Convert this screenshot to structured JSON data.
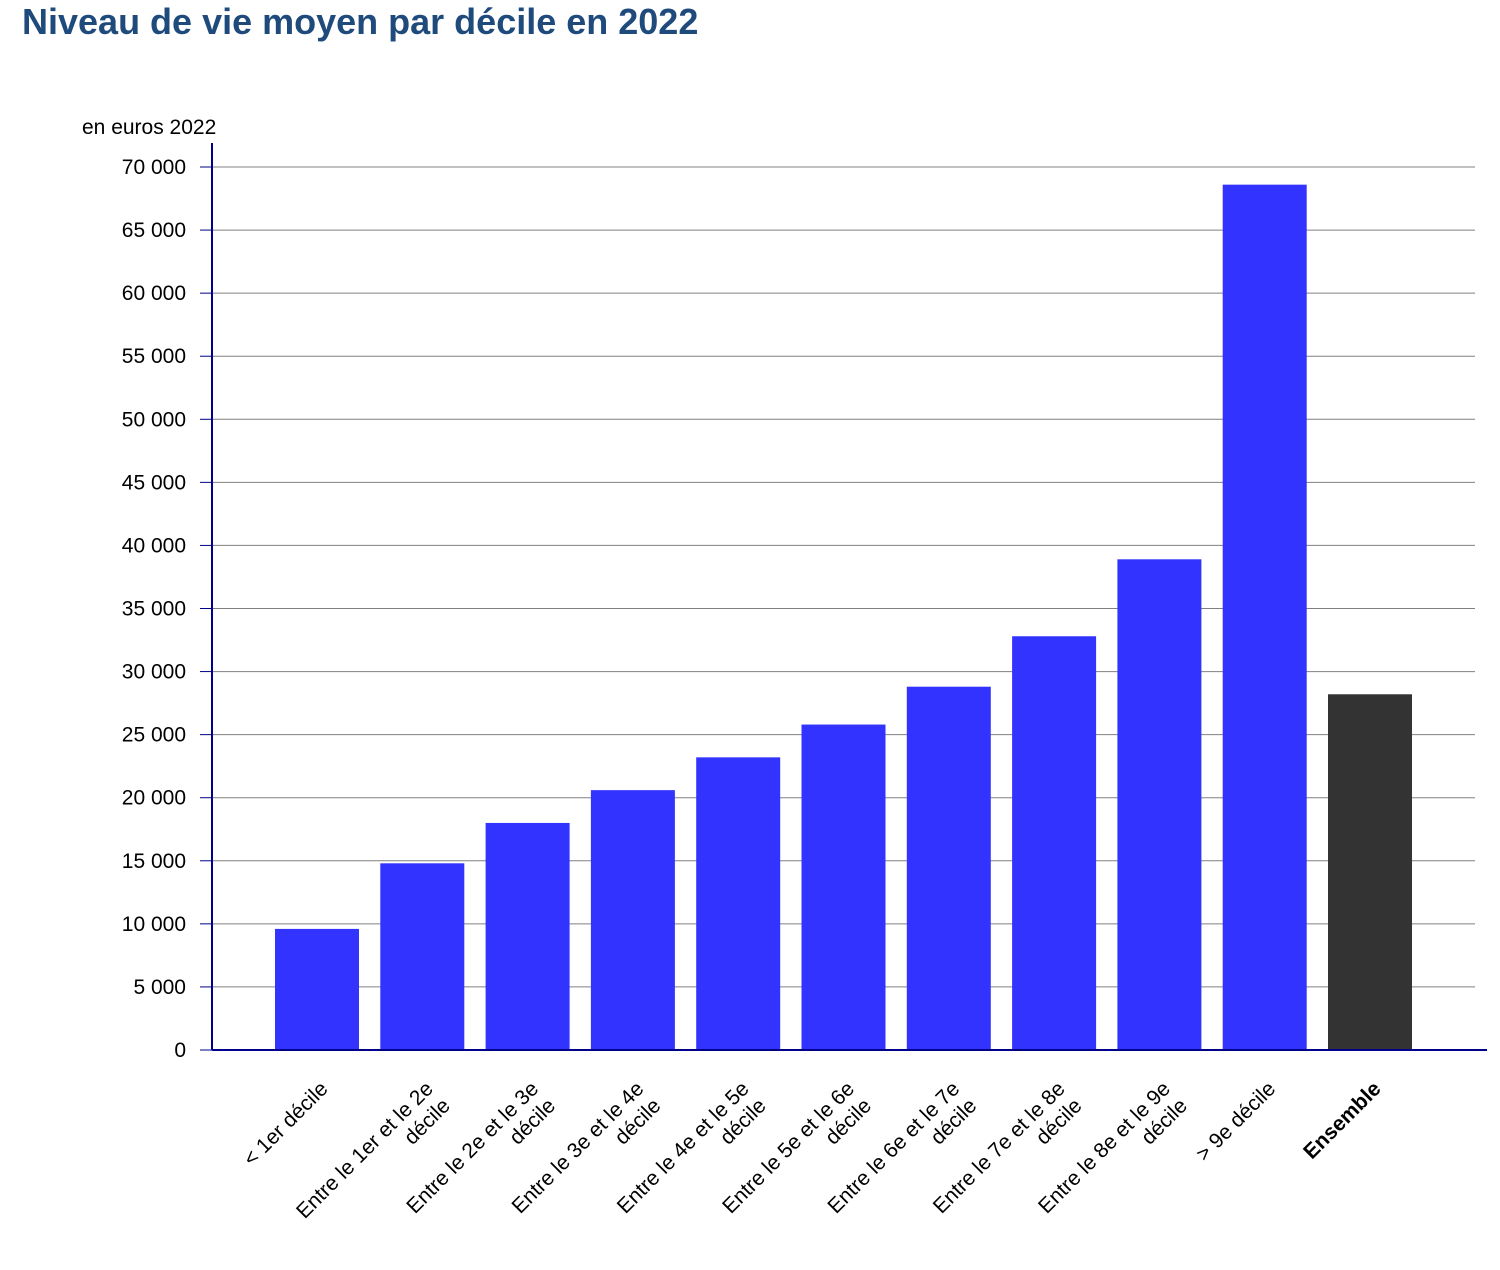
{
  "chart_data": {
    "type": "bar",
    "title": "Niveau de vie moyen par décile en 2022",
    "ylabel": "en euros 2022",
    "xlabel": "",
    "ylim": [
      0,
      70000
    ],
    "ytick_step": 5000,
    "yticks": [
      "0",
      "5 000",
      "10 000",
      "15 000",
      "20 000",
      "25 000",
      "30 000",
      "35 000",
      "40 000",
      "45 000",
      "50 000",
      "55 000",
      "60 000",
      "65 000",
      "70 000"
    ],
    "categories": [
      "< 1er décile",
      "Entre le 1er et le 2e décile",
      "Entre le 2e et le 3e décile",
      "Entre le 3e et le 4e décile",
      "Entre le 4e et le 5e décile",
      "Entre le 5e et le 6e décile",
      "Entre le 6e et le 7e décile",
      "Entre le 7e et le 8e décile",
      "Entre le 8e et le 9e décile",
      "> 9e décile",
      "Ensemble"
    ],
    "category_lines": [
      [
        "< 1er décile"
      ],
      [
        "Entre le 1er et le 2e",
        "décile"
      ],
      [
        "Entre le 2e et le 3e",
        "décile"
      ],
      [
        "Entre le 3e et le 4e",
        "décile"
      ],
      [
        "Entre le 4e et le 5e",
        "décile"
      ],
      [
        "Entre le 5e et le 6e",
        "décile"
      ],
      [
        "Entre le 6e et le 7e",
        "décile"
      ],
      [
        "Entre le 7e et le 8e",
        "décile"
      ],
      [
        "Entre le 8e et le 9e",
        "décile"
      ],
      [
        "> 9e décile"
      ],
      [
        "Ensemble"
      ]
    ],
    "values": [
      9600,
      14800,
      18000,
      20600,
      23200,
      25800,
      28800,
      32800,
      38900,
      68600,
      28200
    ],
    "bold_categories": [
      "Ensemble"
    ],
    "grid": true,
    "legend": "none"
  },
  "colors": {
    "title": "#1f4a7c",
    "bar": "#3333ff",
    "bar_total": "#333333",
    "axis": "#00008b",
    "grid": "#808080"
  }
}
